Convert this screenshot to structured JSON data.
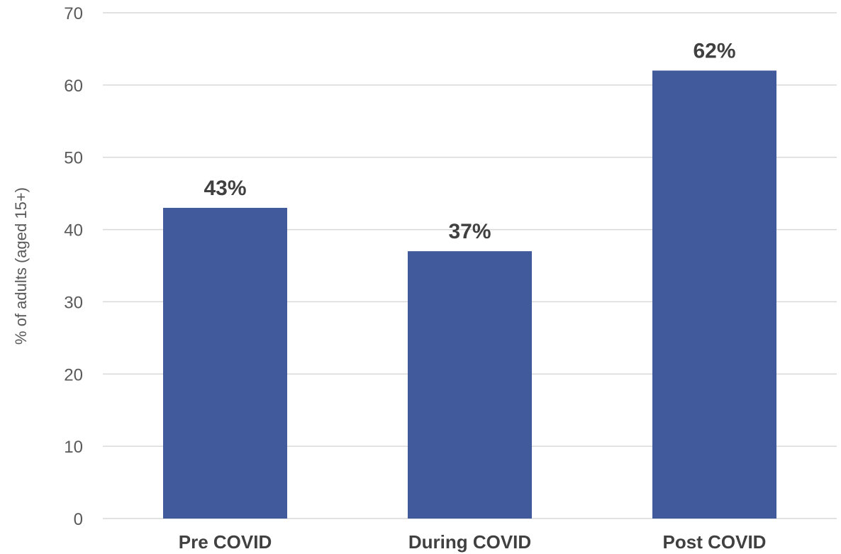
{
  "chart_data": {
    "type": "bar",
    "categories": [
      "Pre COVID",
      "During COVID",
      "Post COVID"
    ],
    "values": [
      43,
      37,
      62
    ],
    "data_labels": [
      "43%",
      "37%",
      "62%"
    ],
    "ylabel": "% of adults (aged 15+)",
    "xlabel": "",
    "ylim": [
      0,
      70
    ],
    "yticks": [
      0,
      10,
      20,
      30,
      40,
      50,
      60,
      70
    ],
    "grid": true,
    "legend": "none",
    "bar_color": "#415A9B"
  }
}
